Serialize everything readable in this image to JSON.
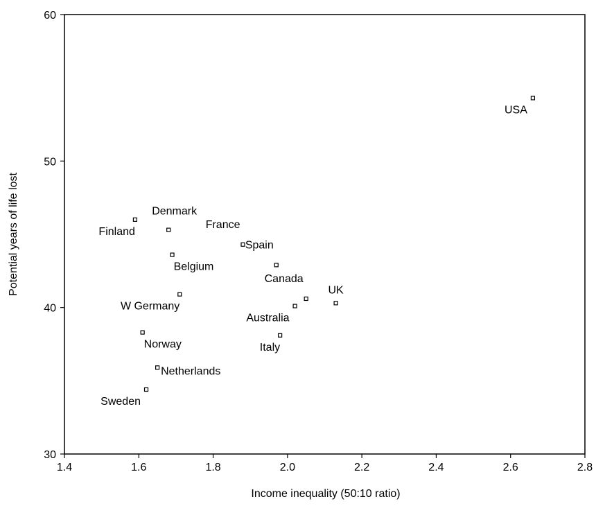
{
  "chart_data": {
    "type": "scatter",
    "xlabel": "Income inequality (50:10 ratio)",
    "ylabel": "Potential years of life lost",
    "xlim": [
      1.4,
      2.8
    ],
    "ylim": [
      30,
      60
    ],
    "x_ticks": [
      "1.4",
      "1.6",
      "1.8",
      "2.0",
      "2.2",
      "2.4",
      "2.6",
      "2.8"
    ],
    "y_ticks": [
      "30",
      "40",
      "50",
      "60"
    ],
    "grid": false,
    "points": [
      {
        "label": "USA",
        "x": 2.66,
        "y": 54.3,
        "label_anchor": "left"
      },
      {
        "label": "Finland",
        "x": 1.59,
        "y": 46.0,
        "label_anchor": "below-left"
      },
      {
        "label": "Denmark",
        "x": 1.68,
        "y": 45.3,
        "label_anchor": "above-right"
      },
      {
        "label": "France",
        "x": 1.88,
        "y": 44.3,
        "label_anchor": "above-left"
      },
      {
        "label": "Belgium",
        "x": 1.69,
        "y": 43.6,
        "label_anchor": "below-right"
      },
      {
        "label": "Spain",
        "x": 1.97,
        "y": 42.9,
        "label_anchor": "above-left"
      },
      {
        "label": "W Germany",
        "x": 1.71,
        "y": 40.9,
        "label_anchor": "below-left"
      },
      {
        "label": "Canada",
        "x": 2.05,
        "y": 40.6,
        "label_anchor": "above-left"
      },
      {
        "label": "UK",
        "x": 2.13,
        "y": 40.3,
        "label_anchor": "above"
      },
      {
        "label": "Australia",
        "x": 2.02,
        "y": 40.1,
        "label_anchor": "left"
      },
      {
        "label": "Norway",
        "x": 1.61,
        "y": 38.3,
        "label_anchor": "below-right"
      },
      {
        "label": "Italy",
        "x": 1.98,
        "y": 38.1,
        "label_anchor": "below-left"
      },
      {
        "label": "Netherlands",
        "x": 1.65,
        "y": 35.9,
        "label_anchor": "right"
      },
      {
        "label": "Sweden",
        "x": 1.62,
        "y": 34.4,
        "label_anchor": "left"
      }
    ]
  }
}
